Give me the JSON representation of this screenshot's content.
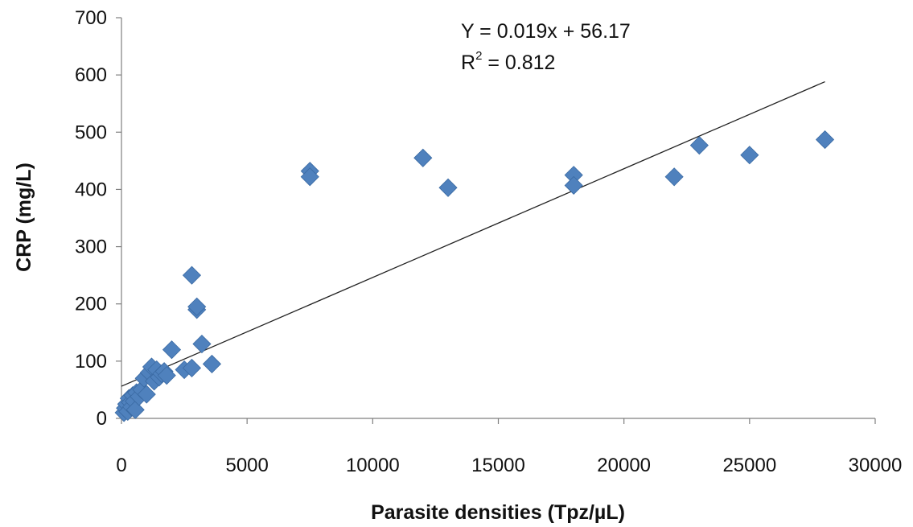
{
  "chart_data": {
    "type": "scatter",
    "xlabel": "Parasite densities (Tpz/µL)",
    "ylabel": "CRP (mg/L)",
    "xlim": [
      0,
      30000
    ],
    "ylim": [
      0,
      700
    ],
    "xticks": [
      0,
      5000,
      10000,
      15000,
      20000,
      25000,
      30000
    ],
    "yticks": [
      0,
      100,
      200,
      300,
      400,
      500,
      600,
      700
    ],
    "grid": false,
    "legend": "none",
    "marker_color": "#4F81BD",
    "series": [
      {
        "points": [
          [
            100,
            10
          ],
          [
            150,
            18
          ],
          [
            200,
            25
          ],
          [
            250,
            12
          ],
          [
            300,
            35
          ],
          [
            350,
            28
          ],
          [
            400,
            20
          ],
          [
            450,
            40
          ],
          [
            500,
            30
          ],
          [
            550,
            15
          ],
          [
            600,
            45
          ],
          [
            700,
            38
          ],
          [
            800,
            50
          ],
          [
            900,
            70
          ],
          [
            1000,
            42
          ],
          [
            1100,
            80
          ],
          [
            1200,
            90
          ],
          [
            1300,
            65
          ],
          [
            1400,
            85
          ],
          [
            1500,
            72
          ],
          [
            1600,
            78
          ],
          [
            1700,
            82
          ],
          [
            1800,
            75
          ],
          [
            2000,
            120
          ],
          [
            2500,
            85
          ],
          [
            2800,
            88
          ],
          [
            2800,
            250
          ],
          [
            3000,
            190
          ],
          [
            3000,
            195
          ],
          [
            3200,
            130
          ],
          [
            3600,
            95
          ],
          [
            7500,
            432
          ],
          [
            7500,
            422
          ],
          [
            12000,
            455
          ],
          [
            13000,
            403
          ],
          [
            18000,
            425
          ],
          [
            18000,
            407
          ],
          [
            22000,
            422
          ],
          [
            23000,
            477
          ],
          [
            25000,
            460
          ],
          [
            28000,
            487
          ]
        ]
      }
    ],
    "trendline": {
      "slope": 0.019,
      "intercept": 56.17,
      "x_range": [
        0,
        28000
      ]
    },
    "annotations": {
      "equation": "Y = 0.019x + 56.17",
      "r2_prefix": "R",
      "r2_sup": "2",
      "r2_value": " = 0.812"
    }
  }
}
